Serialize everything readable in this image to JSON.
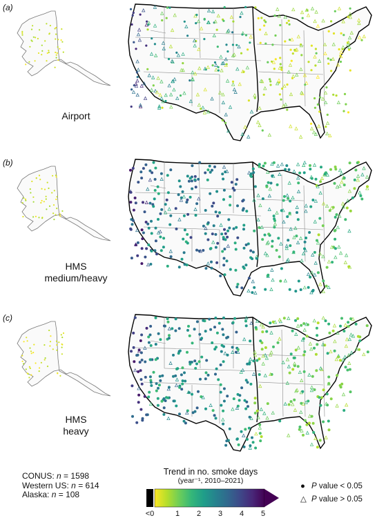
{
  "panels": [
    {
      "letter": "(a)",
      "label_lines": [
        "Airport"
      ],
      "style": "airport"
    },
    {
      "letter": "(b)",
      "label_lines": [
        "HMS",
        "medium/heavy"
      ],
      "style": "medium"
    },
    {
      "letter": "(c)",
      "label_lines": [
        "HMS",
        "heavy"
      ],
      "style": "heavy"
    }
  ],
  "stats": [
    {
      "region": "CONUS:",
      "n_label": "n",
      "value": "= 1598"
    },
    {
      "region": "Western US:",
      "n_label": "n",
      "value": "= 614"
    },
    {
      "region": "Alaska:",
      "n_label": "n",
      "value": "= 108"
    }
  ],
  "legend": {
    "title": "Trend in no. smoke days",
    "subtitle": "(year⁻¹, 2010–2021)",
    "ticks": [
      "<0",
      "1",
      "2",
      "3",
      "4",
      "5"
    ],
    "colormap": [
      "#fde725",
      "#b5de2b",
      "#6ece58",
      "#35b779",
      "#1f9e89",
      "#26828e",
      "#31688e",
      "#3e4989",
      "#482878",
      "#440154"
    ],
    "below_zero_color": "#000000"
  },
  "pkey": {
    "sig_symbol": "●",
    "sig_label": "P",
    "sig_text": "value < 0.05",
    "nonsig_symbol": "△",
    "nonsig_label": "P",
    "nonsig_text": "value > 0.05"
  }
}
